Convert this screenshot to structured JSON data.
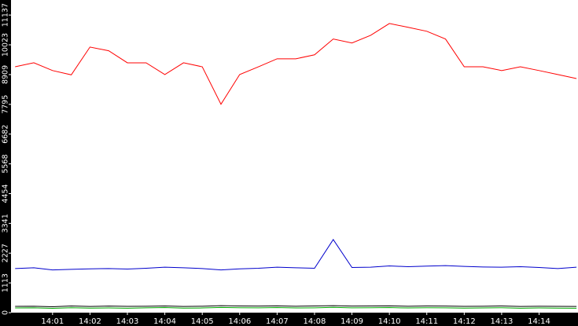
{
  "chart_data": {
    "type": "line",
    "x": [
      0,
      0.5,
      1,
      1.5,
      2,
      2.5,
      3,
      3.5,
      4,
      4.5,
      5,
      5.5,
      6,
      6.5,
      7,
      7.5,
      8,
      8.5,
      9,
      9.5,
      10,
      10.5,
      11,
      11.5,
      12,
      12.5,
      13,
      13.5,
      14,
      14.5,
      15
    ],
    "series": [
      {
        "color": "#ff0000",
        "values": [
          9200,
          9350,
          9060,
          8900,
          9940,
          9800,
          9350,
          9350,
          8910,
          9350,
          9200,
          7800,
          8910,
          9200,
          9500,
          9500,
          9650,
          10240,
          10090,
          10380,
          10820,
          10680,
          10530,
          10240,
          9200,
          9200,
          9060,
          9200,
          9060,
          8910,
          8760
        ]
      },
      {
        "color": "#0000cc",
        "values": [
          1650,
          1680,
          1600,
          1620,
          1640,
          1650,
          1630,
          1660,
          1700,
          1680,
          1650,
          1600,
          1640,
          1660,
          1700,
          1680,
          1660,
          2735,
          1690,
          1700,
          1750,
          1720,
          1740,
          1760,
          1730,
          1710,
          1700,
          1720,
          1690,
          1650,
          1700
        ]
      },
      {
        "color": "#000000",
        "values": [
          235,
          240,
          220,
          250,
          230,
          245,
          235,
          240,
          250,
          230,
          240,
          260,
          250,
          245,
          255,
          240,
          250,
          260,
          245,
          250,
          255,
          240,
          250,
          245,
          235,
          240,
          250,
          230,
          240,
          235,
          230
        ]
      },
      {
        "color": "#00aa00",
        "values": [
          176,
          180,
          160,
          185,
          170,
          175,
          165,
          180,
          190,
          170,
          175,
          195,
          185,
          180,
          190,
          175,
          180,
          200,
          180,
          185,
          190,
          175,
          185,
          180,
          170,
          175,
          185,
          165,
          175,
          170,
          165
        ]
      }
    ],
    "xlim": [
      -0.11,
      15.04
    ],
    "xticks": [
      {
        "value": 1,
        "label": "14:01"
      },
      {
        "value": 2,
        "label": "14:02"
      },
      {
        "value": 3,
        "label": "14:03"
      },
      {
        "value": 4,
        "label": "14:04"
      },
      {
        "value": 5,
        "label": "14:05"
      },
      {
        "value": 6,
        "label": "14:06"
      },
      {
        "value": 7,
        "label": "14:07"
      },
      {
        "value": 8,
        "label": "14:08"
      },
      {
        "value": 9,
        "label": "14:09"
      },
      {
        "value": 10,
        "label": "14:10"
      },
      {
        "value": 11,
        "label": "14:11"
      },
      {
        "value": 12,
        "label": "14:12"
      },
      {
        "value": 13,
        "label": "14:13"
      },
      {
        "value": 14,
        "label": "14:14"
      }
    ],
    "ylim": [
      0,
      11700
    ],
    "yticks": [
      0,
      1113,
      2227,
      3341,
      4454,
      5568,
      6682,
      7795,
      8909,
      10023,
      11137
    ]
  }
}
